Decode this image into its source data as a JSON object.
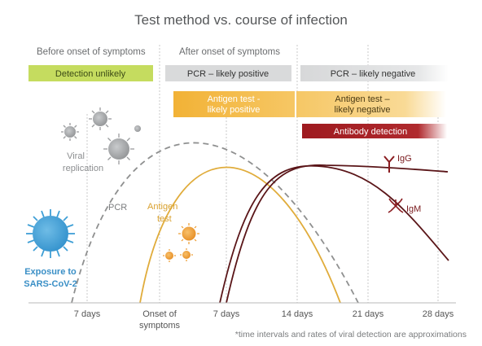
{
  "title": "Test method vs. course of infection",
  "phases": {
    "before": "Before onset of symptoms",
    "after": "After onset of symptoms"
  },
  "bars": {
    "detection_unlikely": "Detection unlikely",
    "pcr_positive": "PCR – likely positive",
    "pcr_negative": "PCR – likely negative",
    "antigen_positive_1": "Antigen test -",
    "antigen_positive_2": "likely positive",
    "antigen_negative_1": "Antigen test –",
    "antigen_negative_2": "likely negative",
    "antibody": "Antibody detection"
  },
  "labels": {
    "viral_replication_1": "Viral",
    "viral_replication_2": "replication",
    "pcr": "PCR",
    "antigen_1": "Antigen",
    "antigen_2": "test",
    "igg": "IgG",
    "igm": "IgM",
    "exposure_1": "Exposure to",
    "exposure_2": "SARS-CoV-2"
  },
  "axis": {
    "ticks": [
      "7 days",
      "Onset of",
      "7 days",
      "14 days",
      "21 days",
      "28 days"
    ],
    "tick_onset_line2": "symptoms"
  },
  "footnote": "*time intervals and rates of viral detection are approximations",
  "colors": {
    "green": "#c5dc5f",
    "gray_bar": "#d9dadb",
    "orange_bar": "#f3b63f",
    "red_bar": "#a41e22",
    "antigen_curve": "#e0ac3b",
    "antibody_curve": "#5a1518",
    "pcr_curve": "#8f9090",
    "virus_gray": "#9a9c9e",
    "virus_blue": "#3f9fd6",
    "virus_orange": "#ec9b2d"
  }
}
